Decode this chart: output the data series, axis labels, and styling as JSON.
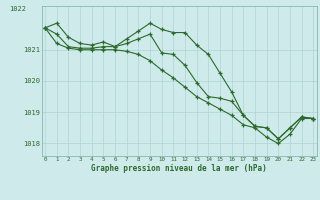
{
  "xlabel": "Graphe pression niveau de la mer (hPa)",
  "background_color": "#ceeaea",
  "grid_color": "#afd4d4",
  "line_color": "#2d6a2d",
  "hours": [
    0,
    1,
    2,
    3,
    4,
    5,
    6,
    7,
    8,
    9,
    10,
    11,
    12,
    13,
    14,
    15,
    16,
    17,
    18,
    19,
    20,
    21,
    22,
    23
  ],
  "line1": [
    1021.7,
    1021.85,
    1021.4,
    1021.2,
    1021.15,
    1021.25,
    1021.1,
    1021.35,
    1021.6,
    1021.85,
    1021.65,
    1021.55,
    1021.55,
    1021.15,
    1020.85,
    1020.25,
    1019.65,
    1018.9,
    1018.55,
    1018.5,
    1018.15,
    1018.5,
    1018.85,
    1018.8
  ],
  "line2": [
    1021.7,
    1021.5,
    1021.1,
    1021.05,
    1021.05,
    1021.1,
    1021.1,
    1021.2,
    1021.35,
    1021.5,
    1020.9,
    1020.85,
    1020.5,
    1019.95,
    1019.5,
    1019.45,
    1019.35,
    1018.9,
    1018.55,
    1018.5,
    1018.15,
    1018.5,
    1018.85,
    1018.8
  ],
  "line3": [
    1021.7,
    1021.2,
    1021.05,
    1021.0,
    1021.0,
    1021.0,
    1021.0,
    1020.95,
    1020.85,
    1020.65,
    1020.35,
    1020.1,
    1019.8,
    1019.5,
    1019.3,
    1019.1,
    1018.9,
    1018.6,
    1018.5,
    1018.2,
    1018.0,
    1018.3,
    1018.8,
    1018.8
  ],
  "ylim": [
    1017.6,
    1022.4
  ],
  "yticks": [
    1018,
    1019,
    1020,
    1021
  ],
  "ytop_label": "1022",
  "xticks": [
    0,
    1,
    2,
    3,
    4,
    5,
    6,
    7,
    8,
    9,
    10,
    11,
    12,
    13,
    14,
    15,
    16,
    17,
    18,
    19,
    20,
    21,
    22,
    23
  ]
}
